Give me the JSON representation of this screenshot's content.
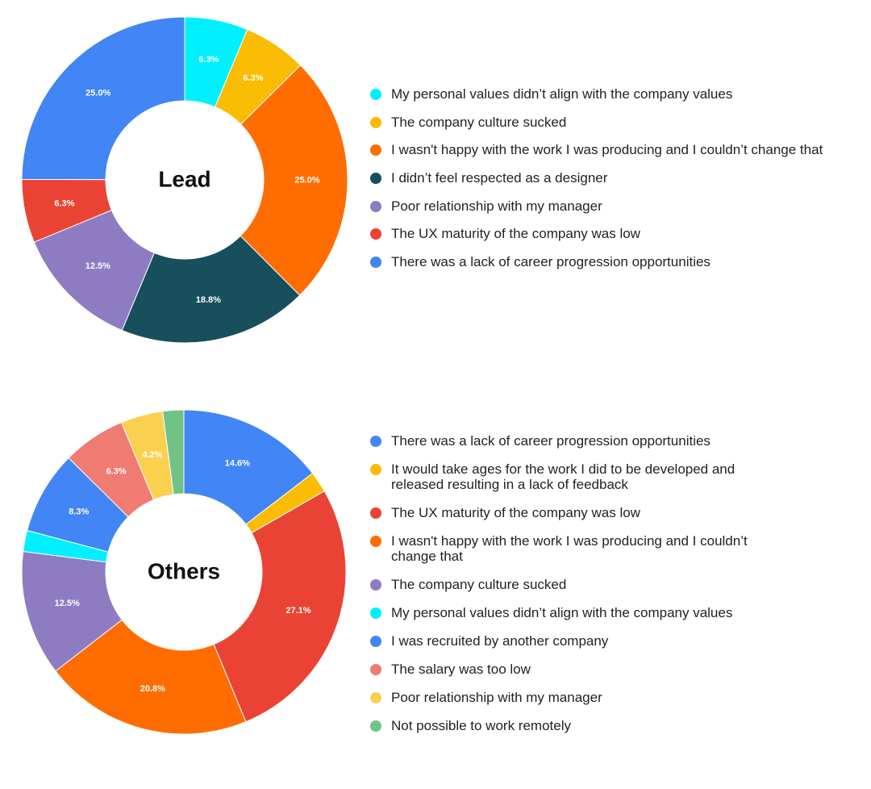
{
  "chart_data": [
    {
      "type": "donut",
      "center_label": "Lead",
      "slices": [
        {
          "label": "My personal values didn’t align with the company values",
          "value": 6.3,
          "display": "6.3%",
          "color": "#00f0ff"
        },
        {
          "label": "The company culture sucked",
          "value": 6.3,
          "display": "6.3%",
          "color": "#fbbc04"
        },
        {
          "label": "I wasn't happy with the work I was producing and I couldn’t change that",
          "value": 25.0,
          "display": "25.0%",
          "color": "#ff6d01"
        },
        {
          "label": "I didn’t feel respected as a designer",
          "value": 18.8,
          "display": "18.8%",
          "color": "#174f5c"
        },
        {
          "label": "Poor relationship with my manager",
          "value": 12.5,
          "display": "12.5%",
          "color": "#8e7cc3"
        },
        {
          "label": "The UX maturity of the company was low",
          "value": 6.3,
          "display": "6.3%",
          "color": "#ea4335"
        },
        {
          "label": "There was a lack of career progression opportunities",
          "value": 25.0,
          "display": "25.0%",
          "color": "#4285f4"
        }
      ]
    },
    {
      "type": "donut",
      "center_label": "Others",
      "slices": [
        {
          "label": "There was a lack of career progression opportunities",
          "value": 14.6,
          "display": "14.6%",
          "color": "#4285f4"
        },
        {
          "label": "It would take ages for the work I did to be developed and released resulting in a lack of feedback",
          "value": 2.1,
          "display": "",
          "color": "#fbbc04"
        },
        {
          "label": "The UX maturity of the company was low",
          "value": 27.1,
          "display": "27.1%",
          "color": "#ea4335"
        },
        {
          "label": "I wasn't happy with the work I was producing and I couldn’t change that",
          "value": 20.8,
          "display": "20.8%",
          "color": "#ff6d01"
        },
        {
          "label": "The company culture sucked",
          "value": 12.5,
          "display": "12.5%",
          "color": "#8e7cc3"
        },
        {
          "label": "My personal values didn’t align with the company values",
          "value": 2.1,
          "display": "",
          "color": "#00f0ff"
        },
        {
          "label": "I was recruited by another company",
          "value": 8.3,
          "display": "8.3%",
          "color": "#4285f4"
        },
        {
          "label": "The salary was too low",
          "value": 6.3,
          "display": "6.3%",
          "color": "#f07b72"
        },
        {
          "label": "Poor relationship with my manager",
          "value": 4.2,
          "display": "4.2%",
          "color": "#fcd04f"
        },
        {
          "label": "Not possible to work remotely",
          "value": 2.1,
          "display": "",
          "color": "#71c287"
        }
      ]
    }
  ]
}
